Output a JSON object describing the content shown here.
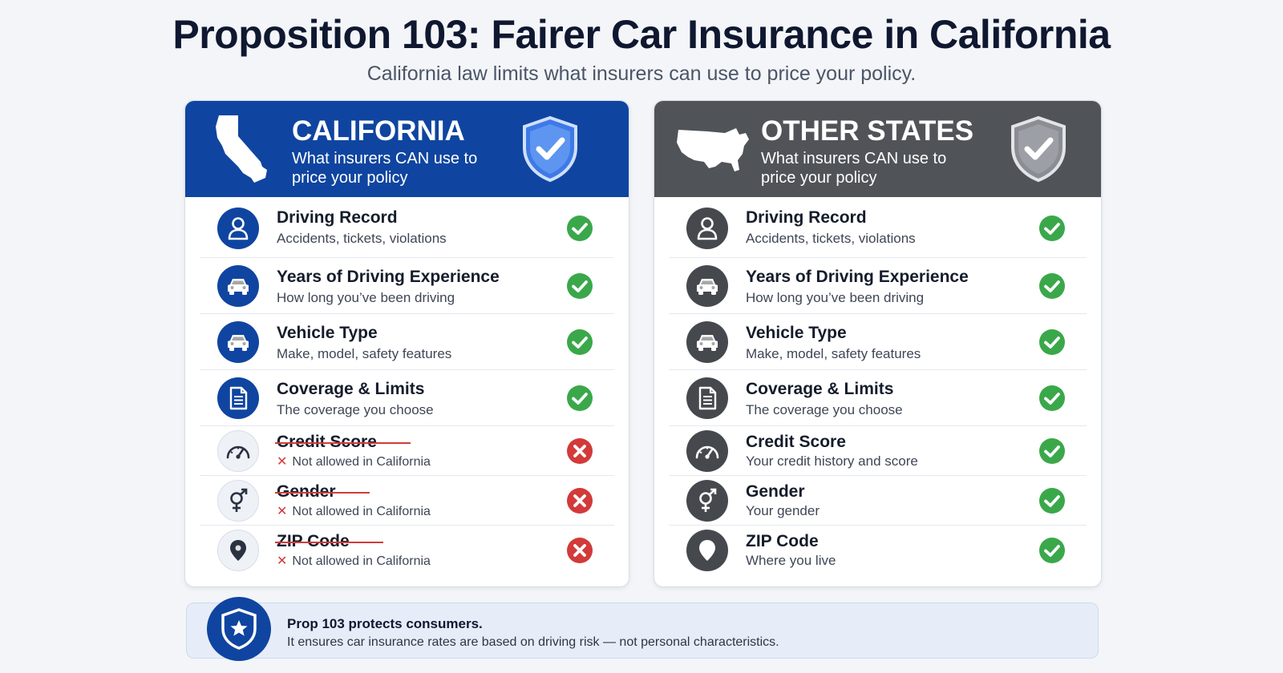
{
  "page": {
    "title": "Proposition 103: Fairer Car Insurance in California",
    "subtitle": "California law limits what insurers can use to price your policy."
  },
  "colors": {
    "california_accent": "#0f45a0",
    "other_states_accent": "#505459",
    "allowed_green": "#3aa84a",
    "denied_red": "#d33a3a"
  },
  "california": {
    "title": "CALIFORNIA",
    "subtitle": "What insurers CAN use to price your policy",
    "map_icon": "california-map-icon",
    "badge_icon": "shield-check-icon",
    "rows": [
      {
        "label": "Driving Record",
        "description": "Accidents, tickets, violations",
        "icon": "person-icon",
        "status": "allowed"
      },
      {
        "label": "Years of Driving Experience",
        "description": "How long you’ve been driving",
        "icon": "car-icon",
        "status": "allowed"
      },
      {
        "label": "Vehicle Type",
        "description": "Make, model, safety features",
        "icon": "car-icon",
        "status": "allowed"
      },
      {
        "label": "Coverage & Limits",
        "description": "The coverage you choose",
        "icon": "document-icon",
        "status": "allowed"
      },
      {
        "label": "Credit Score",
        "description": "Not allowed in California",
        "icon": "speedometer-icon",
        "status": "denied"
      },
      {
        "label": "Gender",
        "description": "Not allowed in California",
        "icon": "gender-icon",
        "status": "denied"
      },
      {
        "label": "ZIP Code",
        "description": "Not allowed in California",
        "icon": "location-pin-icon",
        "status": "denied"
      }
    ]
  },
  "other_states": {
    "title": "OTHER STATES",
    "subtitle": "What insurers CAN use to price your policy",
    "map_icon": "usa-map-icon",
    "badge_icon": "shield-check-icon",
    "rows": [
      {
        "label": "Driving Record",
        "description": "Accidents, tickets, violations",
        "icon": "person-icon",
        "status": "allowed"
      },
      {
        "label": "Years of Driving Experience",
        "description": "How long you’ve been driving",
        "icon": "car-icon",
        "status": "allowed"
      },
      {
        "label": "Vehicle Type",
        "description": "Make, model, safety features",
        "icon": "car-icon",
        "status": "allowed"
      },
      {
        "label": "Coverage & Limits",
        "description": "The coverage you choose",
        "icon": "document-icon",
        "status": "allowed"
      },
      {
        "label": "Credit Score",
        "description": "Your credit history and score",
        "icon": "speedometer-icon",
        "status": "allowed"
      },
      {
        "label": "Gender",
        "description": "Your gender",
        "icon": "gender-icon",
        "status": "allowed"
      },
      {
        "label": "ZIP Code",
        "description": "Where you live",
        "icon": "location-pin-icon",
        "status": "allowed"
      }
    ]
  },
  "footer": {
    "title": "Prop 103 protects consumers.",
    "text": "It ensures car insurance rates are based on driving risk — not personal characteristics.",
    "icon": "shield-star-icon"
  }
}
